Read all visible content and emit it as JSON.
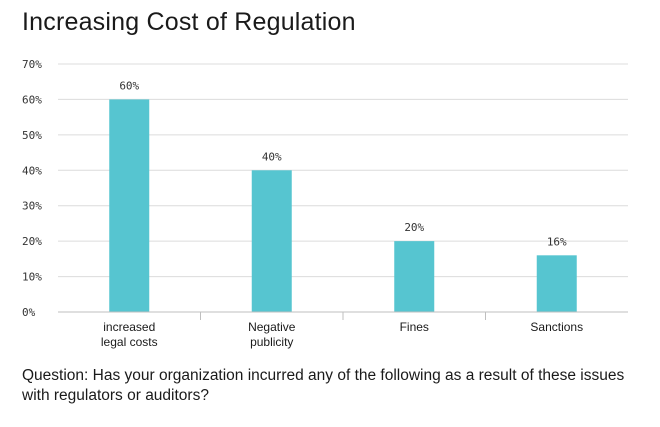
{
  "title": "Increasing Cost of Regulation",
  "question": "Question: Has your organization incurred any of the following as a result of these issues with regulators or auditors?",
  "chart_data": {
    "type": "bar",
    "categories": [
      [
        "increased",
        "legal costs"
      ],
      [
        "Negative",
        "publicity"
      ],
      [
        "Fines"
      ],
      [
        "Sanctions"
      ]
    ],
    "values": [
      60,
      40,
      20,
      16
    ],
    "data_labels": [
      "60%",
      "40%",
      "20%",
      "16%"
    ],
    "ylim": [
      0,
      70
    ],
    "yticks": [
      "0%",
      "10%",
      "20%",
      "30%",
      "40%",
      "50%",
      "60%",
      "70%"
    ],
    "grid": true,
    "bar_color": "#56c5d0"
  }
}
